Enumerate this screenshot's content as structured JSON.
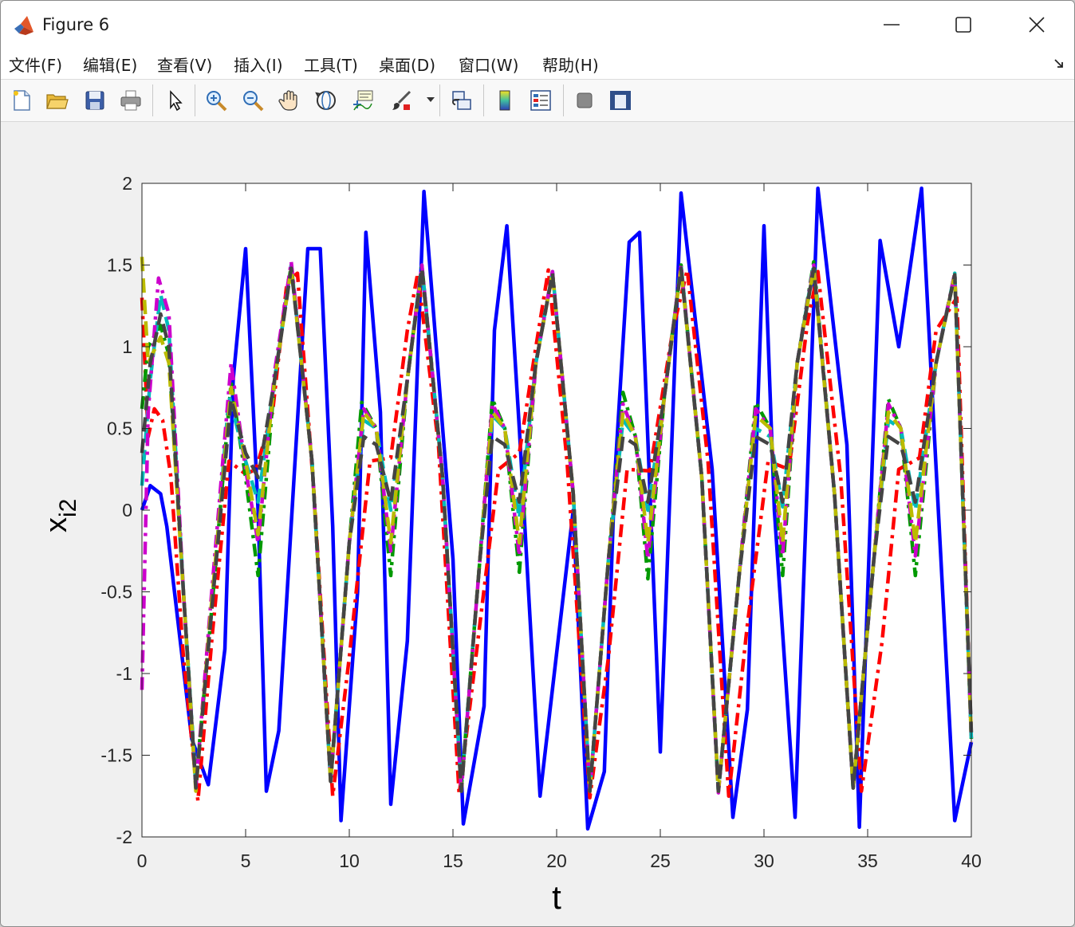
{
  "window": {
    "title": "Figure 6",
    "icon": "matlab-icon"
  },
  "menubar": {
    "items": [
      "文件(F)",
      "编辑(E)",
      "查看(V)",
      "插入(I)",
      "工具(T)",
      "桌面(D)",
      "窗口(W)",
      "帮助(H)"
    ]
  },
  "toolbar": {
    "buttons": [
      "new-figure-icon",
      "open-file-icon",
      "save-icon",
      "print-icon",
      "select-arrow-icon",
      "zoom-in-icon",
      "zoom-out-icon",
      "pan-hand-icon",
      "rotate-3d-icon",
      "data-cursor-icon",
      "brush-icon",
      "link-plot-icon",
      "colorbar-icon",
      "legend-icon",
      "hide-plot-tools-icon",
      "show-plot-tools-icon"
    ]
  },
  "chart_data": {
    "type": "line",
    "xlabel": "t",
    "ylabel": "x",
    "ylabel_subscript": "i2",
    "xlim": [
      0,
      40
    ],
    "ylim": [
      -2,
      2
    ],
    "xticks": [
      0,
      5,
      10,
      15,
      20,
      25,
      30,
      35,
      40
    ],
    "yticks": [
      -2,
      -1.5,
      -1,
      -0.5,
      0,
      0.5,
      1,
      1.5,
      2
    ],
    "xtick_labels": [
      "0",
      "5",
      "10",
      "15",
      "20",
      "25",
      "30",
      "35",
      "40"
    ],
    "ytick_labels": [
      "-2",
      "-1.5",
      "-1",
      "-0.5",
      "0",
      "0.5",
      "1",
      "1.5",
      "2"
    ],
    "grid": false,
    "legend": "none",
    "series": [
      {
        "color": "#0000ff",
        "style": "solid",
        "x": [
          0,
          0.4,
          0.9,
          1.2,
          2.4,
          3.2,
          4.0,
          4.4,
          5.0,
          5.6,
          6.0,
          6.6,
          8.0,
          8.6,
          9.2,
          9.6,
          10.4,
          10.8,
          11.5,
          12.0,
          12.8,
          13.6,
          15.0,
          15.5,
          16.5,
          17.0,
          17.6,
          18.2,
          19.2,
          20.8,
          21.5,
          22.3,
          22.8,
          23.5,
          24.0,
          25.0,
          26.0,
          27.5,
          28.5,
          29.2,
          30.0,
          30.5,
          31.5,
          32.6,
          34.0,
          34.6,
          35.6,
          36.5,
          37.6,
          38.2,
          39.2,
          40
        ],
        "y": [
          0,
          0.15,
          0.1,
          -0.1,
          -1.4,
          -1.68,
          -0.85,
          0.8,
          1.6,
          0,
          -1.72,
          -1.35,
          1.6,
          1.6,
          -0.1,
          -1.9,
          -0.5,
          1.7,
          0.6,
          -1.8,
          -0.8,
          1.95,
          -0.3,
          -1.92,
          -1.2,
          1.1,
          1.74,
          0.5,
          -1.75,
          0.0,
          -1.95,
          -1.6,
          0.2,
          1.64,
          1.7,
          -1.48,
          1.94,
          0.25,
          -1.88,
          -1.22,
          1.74,
          0.0,
          -1.88,
          1.97,
          0.4,
          -1.94,
          1.65,
          1.0,
          1.97,
          0.5,
          -1.9,
          -1.42
        ]
      },
      {
        "color": "#ff0000",
        "style": "dashdot",
        "x": [
          0,
          0.3,
          0.6,
          1.0,
          1.4,
          2.0,
          2.7,
          3.4,
          4.2,
          5.0,
          5.5,
          6.3,
          7.0,
          7.5,
          8.3,
          9.2,
          10.0,
          11.0,
          12.0,
          12.8,
          13.3,
          14.3,
          15.3,
          16.2,
          17.2,
          18.2,
          19.0,
          19.6,
          20.5,
          21.6,
          22.5,
          23.4,
          24.5,
          25.6,
          26.3,
          27.3,
          28.3,
          29.2,
          30.2,
          31.2,
          32.1,
          32.6,
          33.7,
          34.7,
          35.7,
          36.5,
          37.5,
          38.3,
          39.3,
          40
        ],
        "y": [
          1.3,
          0.45,
          0.62,
          0.55,
          0.2,
          -0.9,
          -1.78,
          -0.75,
          0.3,
          0.22,
          0.25,
          0.6,
          1.4,
          1.45,
          0.1,
          -1.75,
          -0.9,
          0.3,
          0.32,
          1.1,
          1.45,
          0.4,
          -1.74,
          -0.8,
          0.25,
          0.35,
          1.0,
          1.47,
          0.3,
          -1.76,
          -0.9,
          0.25,
          0.24,
          1.1,
          1.47,
          0.3,
          -1.75,
          -0.7,
          0.3,
          0.25,
          1.15,
          1.46,
          0.2,
          -1.72,
          -0.8,
          0.25,
          0.32,
          1.1,
          1.3,
          -1.42
        ]
      },
      {
        "color": "#009900",
        "style": "dashdot",
        "x": [
          0,
          0.3,
          0.9,
          1.3,
          2.0,
          2.6,
          3.3,
          4.3,
          5.0,
          5.6,
          6.4,
          7.2,
          8.2,
          9.1,
          10.0,
          10.6,
          11.3,
          12.0,
          12.8,
          13.5,
          14.5,
          15.4,
          16.3,
          16.9,
          17.5,
          18.2,
          19.0,
          19.8,
          20.8,
          21.6,
          22.5,
          23.2,
          23.8,
          24.4,
          25.2,
          26.0,
          27.0,
          27.8,
          28.8,
          29.6,
          30.3,
          30.9,
          31.6,
          32.4,
          33.4,
          34.3,
          35.3,
          36.0,
          36.6,
          37.3,
          38.3,
          39.2,
          40
        ],
        "y": [
          0.62,
          1.0,
          1.13,
          0.95,
          -0.5,
          -1.67,
          -0.7,
          0.78,
          0.2,
          -0.4,
          0.8,
          1.5,
          0.3,
          -1.65,
          -0.2,
          0.66,
          0.5,
          -0.4,
          0.8,
          1.5,
          0.2,
          -1.7,
          -0.3,
          0.68,
          0.5,
          -0.38,
          0.9,
          1.45,
          0.1,
          -1.72,
          -0.3,
          0.72,
          0.45,
          -0.42,
          0.7,
          1.5,
          0.2,
          -1.72,
          -0.4,
          0.66,
          0.5,
          -0.4,
          0.9,
          1.52,
          0.1,
          -1.7,
          -0.3,
          0.68,
          0.5,
          -0.4,
          0.9,
          1.45,
          -1.4
        ]
      },
      {
        "color": "#00bbbb",
        "style": "dash",
        "x": [
          0,
          0.4,
          0.9,
          1.3,
          2.0,
          2.6,
          3.3,
          4.2,
          5.0,
          5.6,
          6.4,
          7.2,
          8.2,
          9.1,
          10.0,
          10.7,
          11.3,
          12.0,
          12.8,
          13.5,
          14.5,
          15.4,
          16.3,
          16.9,
          17.5,
          18.2,
          19.0,
          19.8,
          20.8,
          21.6,
          22.5,
          23.2,
          23.8,
          24.4,
          25.2,
          26.0,
          27.0,
          27.8,
          28.8,
          29.6,
          30.3,
          30.9,
          31.6,
          32.4,
          33.4,
          34.3,
          35.3,
          36.0,
          36.6,
          37.3,
          38.3,
          39.2,
          40
        ],
        "y": [
          0.15,
          0.8,
          1.32,
          1.1,
          -0.5,
          -1.68,
          -0.7,
          0.7,
          0.3,
          0.05,
          0.8,
          1.5,
          0.3,
          -1.66,
          -0.2,
          0.55,
          0.5,
          0.0,
          0.8,
          1.5,
          0.2,
          -1.7,
          -0.3,
          0.58,
          0.5,
          -0.05,
          0.9,
          1.46,
          0.1,
          -1.72,
          -0.3,
          0.55,
          0.45,
          0.0,
          0.7,
          1.5,
          0.2,
          -1.72,
          -0.4,
          0.5,
          0.45,
          0.02,
          0.9,
          1.5,
          0.1,
          -1.7,
          -0.3,
          0.55,
          0.5,
          0.0,
          0.9,
          1.45,
          -1.4
        ]
      },
      {
        "color": "#cc00cc",
        "style": "dashdot",
        "x": [
          0,
          0.3,
          0.8,
          1.3,
          2.0,
          2.6,
          3.3,
          4.3,
          5.0,
          5.6,
          6.4,
          7.2,
          8.2,
          9.1,
          10.0,
          10.7,
          11.3,
          12.0,
          12.8,
          13.5,
          14.5,
          15.4,
          16.3,
          16.9,
          17.5,
          18.2,
          19.0,
          19.8,
          20.8,
          21.6,
          22.5,
          23.2,
          23.8,
          24.4,
          25.2,
          26.0,
          27.0,
          27.8,
          28.8,
          29.6,
          30.3,
          30.9,
          31.6,
          32.4,
          33.4,
          34.3,
          35.3,
          36.0,
          36.6,
          37.3,
          38.3,
          39.2,
          40
        ],
        "y": [
          -1.1,
          0.6,
          1.42,
          1.2,
          -0.5,
          -1.7,
          -0.6,
          0.9,
          0.25,
          -0.2,
          0.85,
          1.52,
          0.3,
          -1.66,
          -0.2,
          0.62,
          0.5,
          -0.25,
          0.8,
          1.5,
          0.2,
          -1.72,
          -0.3,
          0.65,
          0.5,
          -0.28,
          0.9,
          1.46,
          0.1,
          -1.72,
          -0.3,
          0.65,
          0.45,
          -0.3,
          0.7,
          1.5,
          0.2,
          -1.73,
          -0.4,
          0.62,
          0.5,
          -0.28,
          0.9,
          1.5,
          0.1,
          -1.7,
          -0.3,
          0.65,
          0.5,
          -0.28,
          0.9,
          1.45,
          -1.38
        ]
      },
      {
        "color": "#bbbb00",
        "style": "dash",
        "x": [
          0,
          0.3,
          0.9,
          1.3,
          2.0,
          2.6,
          3.3,
          4.3,
          5.0,
          5.6,
          6.4,
          7.2,
          8.2,
          9.1,
          10.0,
          10.7,
          11.3,
          12.0,
          12.8,
          13.5,
          14.5,
          15.4,
          16.3,
          16.9,
          17.5,
          18.2,
          19.0,
          19.8,
          20.8,
          21.6,
          22.5,
          23.2,
          23.8,
          24.4,
          25.2,
          26.0,
          27.0,
          27.8,
          28.8,
          29.6,
          30.3,
          30.9,
          31.6,
          32.4,
          33.4,
          34.3,
          35.3,
          36.0,
          36.6,
          37.3,
          38.3,
          39.2,
          40
        ],
        "y": [
          1.55,
          0.9,
          1.06,
          0.9,
          -0.5,
          -1.72,
          -0.65,
          0.75,
          0.3,
          -0.15,
          0.8,
          1.48,
          0.3,
          -1.66,
          -0.2,
          0.6,
          0.5,
          -0.2,
          0.8,
          1.47,
          0.2,
          -1.72,
          -0.3,
          0.6,
          0.5,
          -0.2,
          0.9,
          1.45,
          0.1,
          -1.72,
          -0.3,
          0.6,
          0.45,
          -0.2,
          0.7,
          1.48,
          0.2,
          -1.72,
          -0.4,
          0.58,
          0.5,
          -0.2,
          0.9,
          1.48,
          0.1,
          -1.7,
          -0.3,
          0.6,
          0.5,
          -0.2,
          0.9,
          1.44,
          -1.38
        ]
      },
      {
        "color": "#444444",
        "style": "dash",
        "x": [
          0,
          0.4,
          0.9,
          1.3,
          2.0,
          2.6,
          3.3,
          4.3,
          5.0,
          5.6,
          6.4,
          7.2,
          8.2,
          9.1,
          10.0,
          10.7,
          11.3,
          12.0,
          12.8,
          13.5,
          14.5,
          15.4,
          16.3,
          16.9,
          17.5,
          18.2,
          19.0,
          19.8,
          20.8,
          21.6,
          22.5,
          23.2,
          23.8,
          24.4,
          25.2,
          26.0,
          27.0,
          27.8,
          28.8,
          29.6,
          30.3,
          30.9,
          31.6,
          32.4,
          33.4,
          34.3,
          35.3,
          36.0,
          36.6,
          37.3,
          38.3,
          39.2,
          40
        ],
        "y": [
          0.35,
          0.9,
          1.2,
          1.0,
          -0.5,
          -1.7,
          -0.7,
          0.68,
          0.35,
          0.2,
          0.8,
          1.48,
          0.3,
          -1.66,
          -0.2,
          0.45,
          0.4,
          0.05,
          0.8,
          1.48,
          0.2,
          -1.72,
          -0.3,
          0.45,
          0.4,
          0.05,
          0.9,
          1.45,
          0.1,
          -1.72,
          -0.3,
          0.45,
          0.4,
          0.05,
          0.7,
          1.48,
          0.2,
          -1.72,
          -0.4,
          0.45,
          0.4,
          0.05,
          0.9,
          1.48,
          0.1,
          -1.7,
          -0.3,
          0.45,
          0.4,
          0.05,
          0.9,
          1.44,
          -1.36
        ]
      }
    ]
  }
}
